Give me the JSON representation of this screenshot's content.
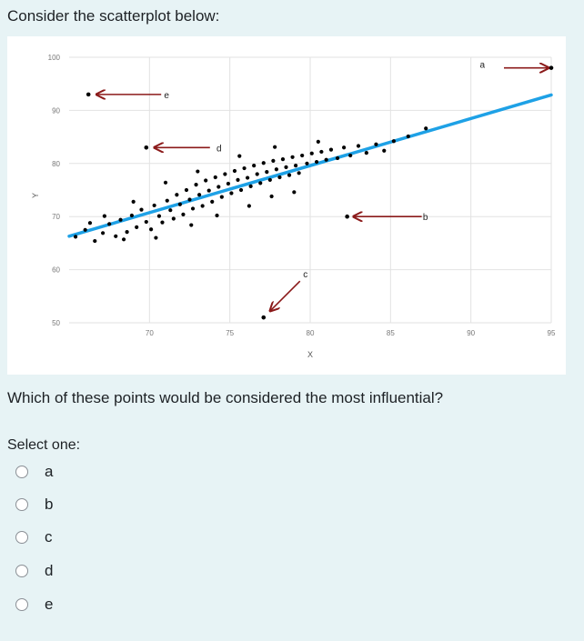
{
  "prompt": "Consider the scatterplot below:",
  "question": "Which of these points would be considered the most influential?",
  "select_label": "Select one:",
  "options": [
    {
      "label": "a"
    },
    {
      "label": "b"
    },
    {
      "label": "c"
    },
    {
      "label": "d"
    },
    {
      "label": "e"
    }
  ],
  "colors": {
    "background": "#e7f3f5",
    "panel": "#ffffff",
    "points": "#000000",
    "regression_line": "#1ea1e6",
    "arrows": "#8b1a1a"
  },
  "chart_data": {
    "type": "scatter",
    "xlabel": "X",
    "ylabel": "Y",
    "xlim": [
      65,
      95
    ],
    "ylim": [
      50,
      100
    ],
    "x_ticks": [
      70,
      75,
      80,
      85,
      90,
      95
    ],
    "y_ticks": [
      50,
      60,
      70,
      80,
      90,
      100
    ],
    "grid": true,
    "regression_line": {
      "x": [
        65,
        95
      ],
      "y": [
        66.3,
        92.9
      ]
    },
    "labeled_points": [
      {
        "label": "a",
        "x": 95,
        "y": 98.0
      },
      {
        "label": "b",
        "x": 82.3,
        "y": 70.0
      },
      {
        "label": "c",
        "x": 77.1,
        "y": 51.0
      },
      {
        "label": "d",
        "x": 69.8,
        "y": 83.0
      },
      {
        "label": "e",
        "x": 66.2,
        "y": 93.0
      }
    ],
    "cluster_points": [
      [
        65.4,
        66.2
      ],
      [
        66.0,
        67.5
      ],
      [
        66.6,
        65.4
      ],
      [
        67.1,
        66.9
      ],
      [
        67.5,
        68.6
      ],
      [
        67.9,
        66.3
      ],
      [
        68.2,
        69.4
      ],
      [
        68.6,
        67.1
      ],
      [
        68.9,
        70.2
      ],
      [
        69.2,
        68.0
      ],
      [
        69.5,
        71.3
      ],
      [
        69.8,
        69.0
      ],
      [
        70.1,
        67.6
      ],
      [
        70.3,
        72.1
      ],
      [
        70.6,
        70.1
      ],
      [
        70.8,
        68.9
      ],
      [
        71.1,
        73.0
      ],
      [
        71.3,
        71.2
      ],
      [
        71.5,
        69.6
      ],
      [
        71.7,
        74.1
      ],
      [
        71.9,
        72.3
      ],
      [
        72.1,
        70.4
      ],
      [
        72.3,
        75.0
      ],
      [
        72.5,
        73.2
      ],
      [
        72.7,
        71.5
      ],
      [
        72.9,
        76.0
      ],
      [
        73.1,
        74.1
      ],
      [
        73.3,
        72.0
      ],
      [
        73.5,
        76.8
      ],
      [
        73.7,
        74.9
      ],
      [
        73.9,
        72.8
      ],
      [
        74.1,
        77.4
      ],
      [
        74.3,
        75.6
      ],
      [
        74.5,
        73.7
      ],
      [
        74.7,
        78.0
      ],
      [
        74.9,
        76.2
      ],
      [
        75.1,
        74.4
      ],
      [
        75.3,
        78.6
      ],
      [
        75.5,
        76.9
      ],
      [
        75.7,
        75.0
      ],
      [
        75.9,
        79.1
      ],
      [
        76.1,
        77.3
      ],
      [
        76.3,
        75.7
      ],
      [
        76.5,
        79.6
      ],
      [
        76.7,
        78.0
      ],
      [
        76.9,
        76.3
      ],
      [
        77.1,
        80.1
      ],
      [
        77.3,
        78.4
      ],
      [
        77.5,
        76.9
      ],
      [
        77.7,
        80.5
      ],
      [
        77.9,
        78.9
      ],
      [
        78.1,
        77.4
      ],
      [
        78.3,
        80.8
      ],
      [
        78.5,
        79.3
      ],
      [
        78.7,
        77.8
      ],
      [
        78.9,
        81.2
      ],
      [
        79.1,
        79.6
      ],
      [
        79.3,
        78.2
      ],
      [
        79.5,
        81.5
      ],
      [
        79.8,
        80.0
      ],
      [
        80.1,
        81.9
      ],
      [
        80.4,
        80.3
      ],
      [
        80.7,
        82.2
      ],
      [
        81.0,
        80.7
      ],
      [
        81.3,
        82.6
      ],
      [
        81.7,
        81.0
      ],
      [
        82.1,
        83.0
      ],
      [
        82.5,
        81.5
      ],
      [
        83.0,
        83.3
      ],
      [
        83.5,
        82.0
      ],
      [
        84.1,
        83.6
      ],
      [
        84.6,
        82.4
      ],
      [
        85.2,
        84.2
      ],
      [
        86.1,
        85.1
      ],
      [
        87.2,
        86.6
      ],
      [
        68.4,
        65.7
      ],
      [
        70.4,
        66.0
      ],
      [
        72.6,
        68.4
      ],
      [
        74.2,
        70.2
      ],
      [
        76.2,
        72.0
      ],
      [
        77.6,
        73.8
      ],
      [
        79.0,
        74.6
      ],
      [
        71.0,
        76.4
      ],
      [
        73.0,
        78.5
      ],
      [
        75.6,
        81.4
      ],
      [
        77.8,
        83.1
      ],
      [
        80.5,
        84.1
      ],
      [
        69.0,
        72.8
      ],
      [
        67.2,
        70.1
      ],
      [
        66.3,
        68.8
      ]
    ]
  }
}
